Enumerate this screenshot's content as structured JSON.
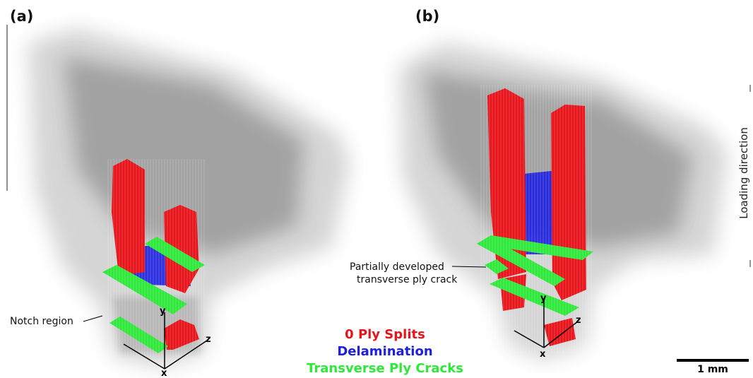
{
  "panels": [
    {
      "label": "(a)",
      "annotation": [
        "Notch region"
      ],
      "axes": [
        "x",
        "y",
        "z"
      ]
    },
    {
      "label": "(b)",
      "annotation": [
        "Partially developed",
        "transverse ply crack"
      ],
      "axes": [
        "x",
        "y",
        "z"
      ]
    }
  ],
  "legend": [
    {
      "label": "0 Ply Splits",
      "color": "#e8141b"
    },
    {
      "label": "Delamination",
      "color": "#1c1ee0"
    },
    {
      "label": "Transverse Ply Cracks",
      "color": "#2ee83a"
    }
  ],
  "scale_bar": "1 mm",
  "loading_direction": "Loading direction"
}
